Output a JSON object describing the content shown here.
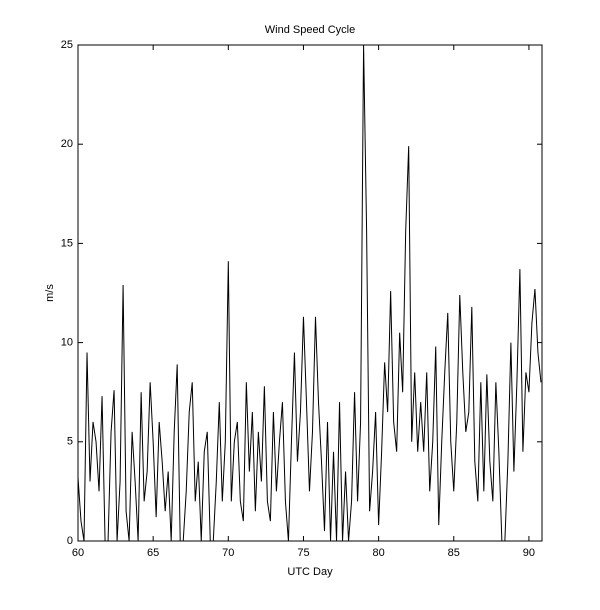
{
  "chart_data": {
    "type": "line",
    "title": "Wind Speed Cycle",
    "x_label": "UTC Day",
    "y_label": "m/s",
    "xlim": [
      60,
      90.87
    ],
    "xticks": [
      60,
      65,
      70,
      75,
      80,
      85,
      90
    ],
    "ylim": [
      0,
      25
    ],
    "yticks": [
      0,
      5,
      10,
      15,
      20,
      25
    ],
    "grid": false,
    "x": [
      60,
      60.2,
      60.4,
      60.6,
      60.8,
      61,
      61.2,
      61.4,
      61.6,
      61.8,
      62,
      62.2,
      62.4,
      62.6,
      62.8,
      63,
      63.2,
      63.4,
      63.6,
      63.8,
      64,
      64.2,
      64.4,
      64.6,
      64.8,
      65,
      65.2,
      65.4,
      65.6,
      65.8,
      66,
      66.2,
      66.4,
      66.6,
      66.8,
      67,
      67.2,
      67.4,
      67.6,
      67.8,
      68,
      68.2,
      68.4,
      68.6,
      68.8,
      69,
      69.2,
      69.4,
      69.6,
      69.8,
      70,
      70.2,
      70.4,
      70.6,
      70.8,
      71,
      71.2,
      71.4,
      71.6,
      71.8,
      72,
      72.2,
      72.4,
      72.6,
      72.8,
      73,
      73.2,
      73.4,
      73.6,
      73.8,
      74,
      74.2,
      74.4,
      74.6,
      74.8,
      75,
      75.2,
      75.4,
      75.6,
      75.8,
      76,
      76.2,
      76.4,
      76.6,
      76.8,
      77,
      77.2,
      77.4,
      77.6,
      77.8,
      78,
      78.2,
      78.4,
      78.6,
      78.8,
      79,
      79.2,
      79.4,
      79.6,
      79.8,
      80,
      80.2,
      80.4,
      80.6,
      80.8,
      81,
      81.2,
      81.4,
      81.6,
      81.8,
      82,
      82.2,
      82.4,
      82.6,
      82.8,
      83,
      83.2,
      83.4,
      83.6,
      83.8,
      84,
      84.2,
      84.4,
      84.6,
      84.8,
      85,
      85.2,
      85.4,
      85.6,
      85.8,
      86,
      86.2,
      86.4,
      86.6,
      86.8,
      87,
      87.2,
      87.4,
      87.6,
      87.8,
      88,
      88.2,
      88.4,
      88.6,
      88.8,
      89,
      89.2,
      89.4,
      89.6,
      89.8,
      90,
      90.2,
      90.4,
      90.6,
      90.8
    ],
    "series": [
      {
        "color": "#000000",
        "values": [
          3.2,
          1.0,
          0,
          9.5,
          3.0,
          6.0,
          5.0,
          2.5,
          7.3,
          0,
          0,
          5.5,
          7.6,
          0,
          3.0,
          12.9,
          1.5,
          0,
          5.5,
          3.0,
          0,
          7.5,
          2.0,
          3.5,
          8.0,
          5.0,
          1.2,
          6.0,
          4.0,
          1.5,
          3.5,
          0,
          5.5,
          8.9,
          0,
          0,
          2.5,
          6.5,
          8.0,
          2.0,
          4.0,
          0,
          4.5,
          5.5,
          0,
          0,
          3.0,
          7.0,
          2.0,
          5.0,
          14.1,
          2.0,
          5.0,
          6.0,
          2.0,
          1.0,
          8.0,
          3.5,
          6.5,
          1.5,
          5.5,
          3.0,
          7.8,
          2.0,
          1.0,
          6.5,
          2.5,
          5.0,
          7.0,
          2.0,
          0,
          5.0,
          9.5,
          4.0,
          6.5,
          11.3,
          7.0,
          2.5,
          5.5,
          11.3,
          7.0,
          4.0,
          0.5,
          6.0,
          0,
          4.5,
          0,
          7.0,
          0,
          3.5,
          0,
          2.0,
          7.5,
          2.0,
          6.0,
          25,
          15.7,
          1.5,
          3.5,
          6.5,
          0.8,
          4.5,
          9.0,
          6.5,
          12.6,
          6.0,
          4.5,
          10.5,
          7.5,
          15.6,
          19.9,
          5.0,
          8.5,
          4.5,
          7.0,
          4.5,
          8.5,
          2.5,
          5.0,
          9.8,
          0.8,
          5.0,
          8.5,
          11.5,
          5.0,
          2.5,
          6.0,
          12.4,
          8.5,
          5.5,
          6.5,
          11.8,
          4.0,
          2.0,
          8.0,
          2.5,
          8.4,
          4.0,
          2.0,
          8.0,
          4.5,
          0,
          0,
          4.0,
          10.0,
          3.5,
          8.0,
          13.7,
          4.5,
          8.5,
          7.5,
          11.0,
          12.7,
          9.5,
          8.0
        ]
      }
    ]
  }
}
